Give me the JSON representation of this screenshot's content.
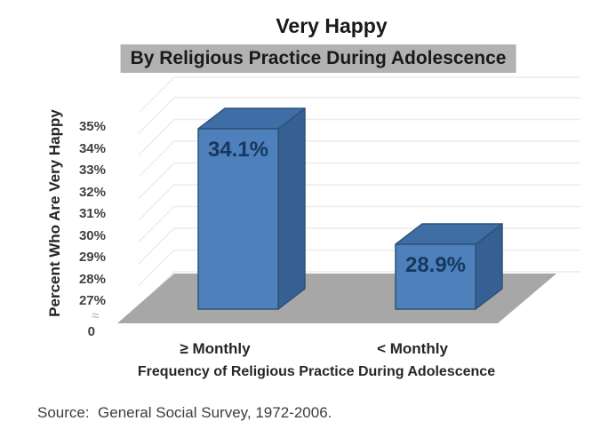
{
  "source": "Source:  General Social Survey, 1972-2006.",
  "axis_break_symbol": "≈",
  "colors": {
    "bar_front": "#4e80bc",
    "bar_top": "#3f6ea6",
    "bar_side": "#365f93",
    "bar_edge": "#2f5377",
    "floor": "#a7a7a7",
    "gridline": "#ececec",
    "subtitle_highlight": "#b2b2b2",
    "value_label_text": "#17375e"
  },
  "chart_data": {
    "type": "bar",
    "projection": "3d",
    "title": "Very Happy",
    "subtitle": "By Religious Practice During Adolescence",
    "categories": [
      "≥ Monthly",
      "< Monthly"
    ],
    "values": [
      34.1,
      28.9
    ],
    "value_labels": [
      "34.1%",
      "28.9%"
    ],
    "xlabel": "Frequency of Religious Practice During Adolescence",
    "ylabel": "Percent Who Are Very Happy",
    "yticks": [
      "35%",
      "34%",
      "33%",
      "32%",
      "31%",
      "30%",
      "29%",
      "28%",
      "27%"
    ],
    "ytick_values": [
      35,
      34,
      33,
      32,
      31,
      30,
      29,
      28,
      27
    ],
    "baseline_label": "0",
    "axis_break": true,
    "ylim_display": [
      27,
      35
    ],
    "grid": true,
    "legend": false
  }
}
